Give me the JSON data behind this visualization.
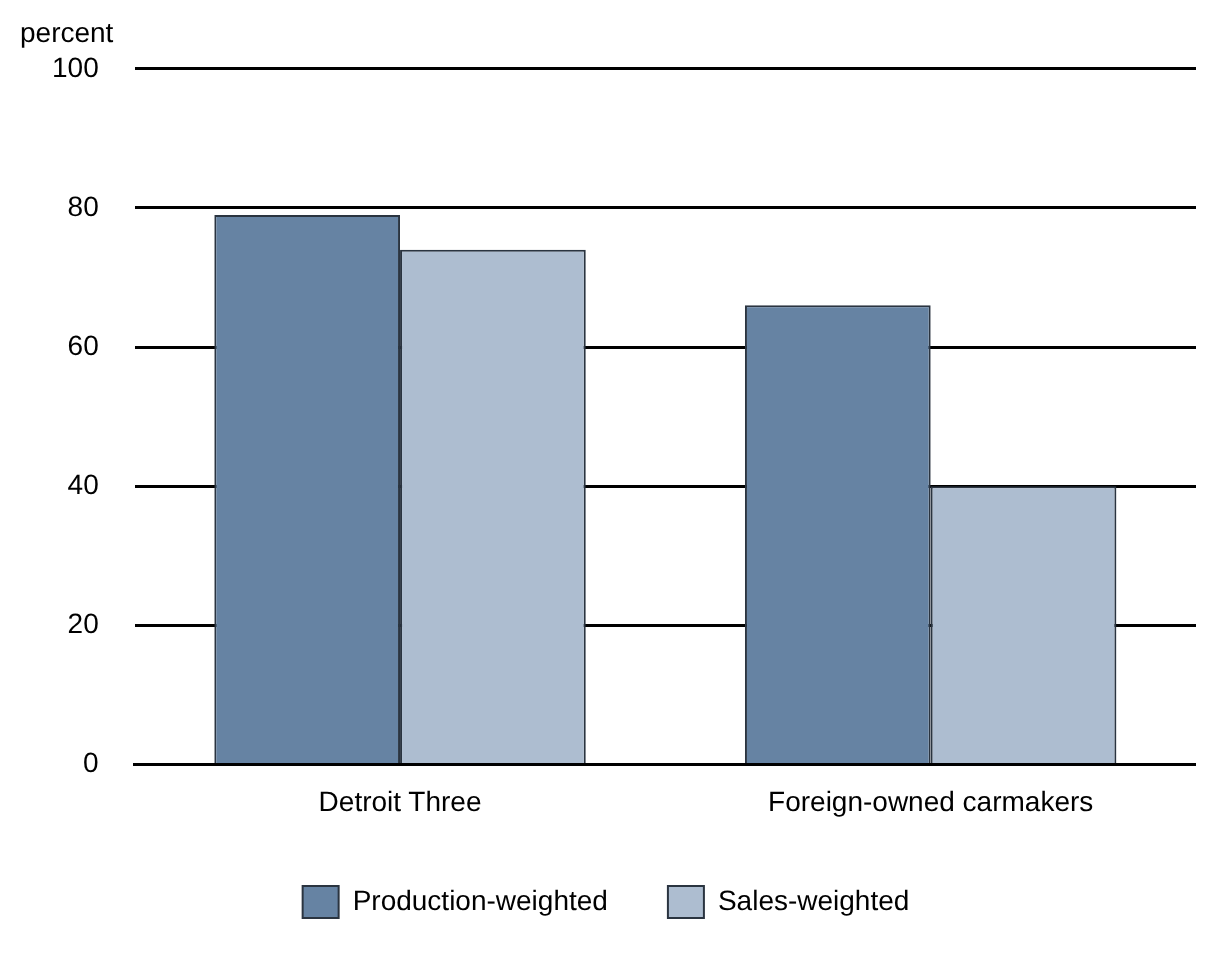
{
  "chart_data": {
    "type": "bar",
    "ylabel": "percent",
    "categories": [
      "Detroit Three",
      "Foreign-owned carmakers"
    ],
    "series": [
      {
        "name": "Production-weighted",
        "color": "#6683a3",
        "values": [
          79,
          66
        ]
      },
      {
        "name": "Sales-weighted",
        "color": "#adbdd0",
        "values": [
          74,
          40
        ]
      }
    ],
    "ylim": [
      0,
      100
    ],
    "yticks": [
      0,
      20,
      40,
      60,
      80,
      100
    ],
    "grid": "y",
    "legend": "bottom"
  }
}
